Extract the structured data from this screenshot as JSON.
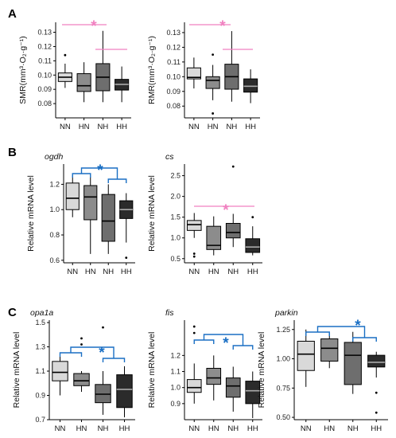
{
  "panel_letters": [
    "A",
    "B",
    "C"
  ],
  "categories": [
    "NN",
    "HN",
    "NH",
    "HH"
  ],
  "colors": {
    "box_fills": [
      "#d9d9d9",
      "#8c8c8c",
      "#6e6e6e",
      "#2b2b2b"
    ],
    "significance_pink": "#f080c0",
    "significance_blue": "#1a6fc4"
  },
  "chart_data": [
    {
      "type": "box",
      "panel": "A",
      "title": "",
      "ylabel": "SMR(mm³·O₂·g⁻¹)",
      "categories": [
        "NN",
        "HN",
        "NH",
        "HH"
      ],
      "ylim": [
        0.07,
        0.137
      ],
      "yticks": [
        0.08,
        0.09,
        0.1,
        0.11,
        0.12,
        0.13
      ],
      "tick_labels": [
        "0.08",
        "0.09",
        "0.10",
        "0.11",
        "0.12",
        "0.13"
      ],
      "boxes": [
        {
          "min": 0.091,
          "q1": 0.0955,
          "median": 0.0985,
          "q3": 0.1015,
          "max": 0.108,
          "outliers": [
            0.114
          ]
        },
        {
          "min": 0.081,
          "q1": 0.0885,
          "median": 0.0925,
          "q3": 0.101,
          "max": 0.109,
          "outliers": []
        },
        {
          "min": 0.081,
          "q1": 0.089,
          "median": 0.0985,
          "q3": 0.108,
          "max": 0.131,
          "outliers": []
        },
        {
          "min": 0.081,
          "q1": 0.0895,
          "median": 0.0935,
          "q3": 0.097,
          "max": 0.106,
          "outliers": []
        }
      ],
      "significance": [
        {
          "color": "pink",
          "mark": "*",
          "pair": "between"
        }
      ]
    },
    {
      "type": "box",
      "panel": "A",
      "title": "",
      "ylabel": "RMR(mm³·O₂·g⁻¹)",
      "categories": [
        "NN",
        "HN",
        "NH",
        "HH"
      ],
      "ylim": [
        0.072,
        0.137
      ],
      "yticks": [
        0.08,
        0.09,
        0.1,
        0.11,
        0.12,
        0.13
      ],
      "tick_labels": [
        "0.08",
        "0.09",
        "0.10",
        "0.11",
        "0.12",
        "0.13"
      ],
      "boxes": [
        {
          "min": 0.092,
          "q1": 0.0985,
          "median": 0.0995,
          "q3": 0.106,
          "max": 0.113,
          "outliers": []
        },
        {
          "min": 0.084,
          "q1": 0.092,
          "median": 0.0975,
          "q3": 0.1,
          "max": 0.108,
          "outliers": [
            0.115,
            0.075
          ]
        },
        {
          "min": 0.083,
          "q1": 0.0915,
          "median": 0.1,
          "q3": 0.1085,
          "max": 0.131,
          "outliers": []
        },
        {
          "min": 0.082,
          "q1": 0.0895,
          "median": 0.0935,
          "q3": 0.0985,
          "max": 0.105,
          "outliers": []
        }
      ],
      "significance": [
        {
          "color": "pink",
          "mark": "*",
          "pair": "between"
        }
      ]
    },
    {
      "type": "box",
      "panel": "B",
      "title": "ogdh",
      "ylabel": "Relative mRNA level",
      "categories": [
        "NN",
        "HN",
        "NH",
        "HH"
      ],
      "ylim": [
        0.58,
        1.36
      ],
      "yticks": [
        0.6,
        0.8,
        1.0,
        1.2
      ],
      "tick_labels": [
        "0.6",
        "0.8",
        "1.0",
        "1.2"
      ],
      "boxes": [
        {
          "min": 0.94,
          "q1": 1.0,
          "median": 1.09,
          "q3": 1.21,
          "max": 1.27,
          "outliers": []
        },
        {
          "min": 0.65,
          "q1": 0.92,
          "median": 1.1,
          "q3": 1.19,
          "max": 1.26,
          "outliers": []
        },
        {
          "min": 0.65,
          "q1": 0.75,
          "median": 0.91,
          "q3": 1.12,
          "max": 1.2,
          "outliers": []
        },
        {
          "min": 0.74,
          "q1": 0.93,
          "median": 1.0,
          "q3": 1.07,
          "max": 1.13,
          "outliers": [
            0.62
          ]
        }
      ],
      "significance": [
        {
          "color": "blue",
          "mark": "*",
          "pair": "bracket"
        }
      ]
    },
    {
      "type": "box",
      "panel": "B",
      "title": "cs",
      "ylabel": "Relative mRNA level",
      "categories": [
        "NN",
        "HN",
        "NH",
        "HH"
      ],
      "ylim": [
        0.4,
        2.78
      ],
      "yticks": [
        0.5,
        1.0,
        1.5,
        2.0,
        2.5
      ],
      "tick_labels": [
        "0.5",
        "1.0",
        "1.5",
        "2.0",
        "2.5"
      ],
      "boxes": [
        {
          "min": 1.0,
          "q1": 1.18,
          "median": 1.32,
          "q3": 1.42,
          "max": 1.6,
          "outliers": [
            0.62,
            0.55
          ]
        },
        {
          "min": 0.58,
          "q1": 0.72,
          "median": 0.82,
          "q3": 1.28,
          "max": 1.52,
          "outliers": []
        },
        {
          "min": 0.78,
          "q1": 1.0,
          "median": 1.13,
          "q3": 1.35,
          "max": 1.58,
          "outliers": [
            2.72
          ]
        },
        {
          "min": 0.58,
          "q1": 0.65,
          "median": 0.78,
          "q3": 0.98,
          "max": 1.28,
          "outliers": [
            1.5
          ]
        }
      ],
      "significance": [
        {
          "color": "pink",
          "mark": "*",
          "pair": "between"
        }
      ]
    },
    {
      "type": "box",
      "panel": "C",
      "title": "opa1a",
      "ylabel": "Relative mRNA level",
      "categories": [
        "NN",
        "HN",
        "NH",
        "HH"
      ],
      "ylim": [
        0.7,
        1.52
      ],
      "yticks": [
        0.7,
        0.9,
        1.1,
        1.3,
        1.5
      ],
      "tick_labels": [
        "0.7",
        "0.9",
        "1.1",
        "1.3",
        "1.5"
      ],
      "boxes": [
        {
          "min": 0.9,
          "q1": 1.02,
          "median": 1.09,
          "q3": 1.18,
          "max": 1.25,
          "outliers": []
        },
        {
          "min": 0.93,
          "q1": 0.98,
          "median": 1.02,
          "q3": 1.08,
          "max": 1.1,
          "outliers": [
            1.37,
            1.32
          ]
        },
        {
          "min": 0.74,
          "q1": 0.84,
          "median": 0.91,
          "q3": 0.99,
          "max": 1.1,
          "outliers": [
            1.46
          ]
        },
        {
          "min": 0.72,
          "q1": 0.8,
          "median": 0.95,
          "q3": 1.07,
          "max": 1.14,
          "outliers": []
        }
      ],
      "significance": [
        {
          "color": "blue",
          "mark": "*",
          "pair": "bracket"
        }
      ]
    },
    {
      "type": "box",
      "panel": "C",
      "title": "fis",
      "ylabel": "Relative mRNA level",
      "categories": [
        "NN",
        "HN",
        "NH",
        "HH"
      ],
      "ylim": [
        0.8,
        1.42
      ],
      "yticks": [
        0.9,
        1.0,
        1.1,
        1.2
      ],
      "tick_labels": [
        "0.9",
        "1.0",
        "1.1",
        "1.2"
      ],
      "boxes": [
        {
          "min": 0.9,
          "q1": 0.97,
          "median": 1.0,
          "q3": 1.05,
          "max": 1.15,
          "outliers": [
            1.38,
            1.34
          ]
        },
        {
          "min": 0.92,
          "q1": 1.02,
          "median": 1.06,
          "q3": 1.12,
          "max": 1.2,
          "outliers": []
        },
        {
          "min": 0.85,
          "q1": 0.94,
          "median": 1.01,
          "q3": 1.06,
          "max": 1.13,
          "outliers": []
        },
        {
          "min": 0.81,
          "q1": 0.9,
          "median": 0.98,
          "q3": 1.04,
          "max": 1.1,
          "outliers": []
        }
      ],
      "significance": [
        {
          "color": "blue",
          "mark": "*",
          "pair": "bracket"
        }
      ]
    },
    {
      "type": "box",
      "panel": "C",
      "title": "parkin",
      "ylabel": "Relative mRNA level",
      "categories": [
        "NN",
        "HN",
        "NH",
        "HH"
      ],
      "ylim": [
        0.48,
        1.33
      ],
      "yticks": [
        0.5,
        0.75,
        1.0,
        1.25
      ],
      "tick_labels": [
        "0.50",
        "0.75",
        "1.00",
        "1.25"
      ],
      "boxes": [
        {
          "min": 0.76,
          "q1": 0.9,
          "median": 1.04,
          "q3": 1.15,
          "max": 1.25,
          "outliers": []
        },
        {
          "min": 0.92,
          "q1": 0.98,
          "median": 1.09,
          "q3": 1.17,
          "max": 1.22,
          "outliers": []
        },
        {
          "min": 0.7,
          "q1": 0.78,
          "median": 1.03,
          "q3": 1.14,
          "max": 1.23,
          "outliers": []
        },
        {
          "min": 0.84,
          "q1": 0.93,
          "median": 0.97,
          "q3": 1.03,
          "max": 1.06,
          "outliers": [
            0.71,
            0.54
          ]
        }
      ],
      "significance": [
        {
          "color": "blue",
          "mark": "*",
          "pair": "bracket"
        }
      ]
    }
  ]
}
